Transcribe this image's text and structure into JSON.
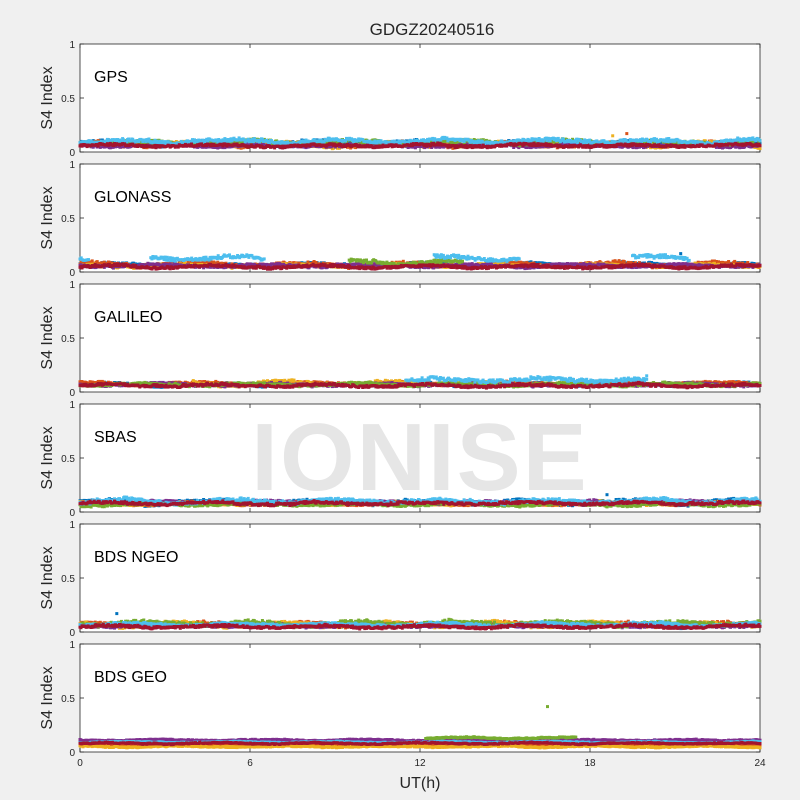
{
  "chart_data": {
    "type": "scatter",
    "title": "GDGZ20240516",
    "xlabel": "UT(h)",
    "ylabel": "S4 Index",
    "xlim": [
      0,
      24
    ],
    "ylim": [
      0,
      1
    ],
    "xticks": [
      "0",
      "6",
      "12",
      "18",
      "24"
    ],
    "yticks": [
      "0",
      "0.5",
      "1"
    ],
    "watermark": "IONISE",
    "colors": [
      "#0072BD",
      "#D95319",
      "#EDB120",
      "#7E2F8E",
      "#77AC30",
      "#4DBEEE",
      "#A2142F"
    ],
    "panels": [
      {
        "label": "GPS",
        "series": [
          {
            "base": 0.08,
            "amp": 0.03,
            "seg": [
              [
                0,
                24
              ]
            ]
          },
          {
            "base": 0.07,
            "amp": 0.03,
            "seg": [
              [
                0,
                24
              ]
            ]
          },
          {
            "base": 0.07,
            "amp": 0.03,
            "seg": [
              [
                0,
                24
              ]
            ]
          },
          {
            "base": 0.06,
            "amp": 0.02,
            "seg": [
              [
                0,
                24
              ]
            ]
          },
          {
            "base": 0.09,
            "amp": 0.03,
            "seg": [
              [
                0,
                24
              ]
            ]
          },
          {
            "base": 0.1,
            "amp": 0.03,
            "seg": [
              [
                0,
                24
              ]
            ]
          },
          {
            "base": 0.06,
            "amp": 0.02,
            "seg": [
              [
                0,
                24
              ]
            ]
          }
        ],
        "extra": [
          {
            "x": 19.3,
            "y": 0.17,
            "c": 1
          },
          {
            "x": 18.8,
            "y": 0.15,
            "c": 2
          }
        ]
      },
      {
        "label": "GLONASS",
        "series": [
          {
            "base": 0.07,
            "amp": 0.02,
            "seg": [
              [
                0,
                24
              ]
            ]
          },
          {
            "base": 0.07,
            "amp": 0.03,
            "seg": [
              [
                0,
                24
              ]
            ]
          },
          {
            "base": 0.06,
            "amp": 0.02,
            "seg": [
              [
                0,
                24
              ]
            ]
          },
          {
            "base": 0.06,
            "amp": 0.02,
            "seg": [
              [
                0,
                24
              ]
            ]
          },
          {
            "base": 0.09,
            "amp": 0.03,
            "seg": [
              [
                9.5,
                13.5
              ]
            ]
          },
          {
            "base": 0.13,
            "amp": 0.03,
            "seg": [
              [
                0,
                0.3
              ],
              [
                2.5,
                6.5
              ],
              [
                12.5,
                15.5
              ],
              [
                19.5,
                21.5
              ]
            ]
          },
          {
            "base": 0.05,
            "amp": 0.02,
            "seg": [
              [
                0,
                24
              ]
            ]
          }
        ],
        "extra": [
          {
            "x": 21.2,
            "y": 0.17,
            "c": 0
          }
        ]
      },
      {
        "label": "GALILEO",
        "series": [
          {
            "base": 0.07,
            "amp": 0.02,
            "seg": [
              [
                0,
                24
              ]
            ]
          },
          {
            "base": 0.08,
            "amp": 0.02,
            "seg": [
              [
                0,
                24
              ]
            ]
          },
          {
            "base": 0.08,
            "amp": 0.03,
            "seg": [
              [
                4,
                12
              ],
              [
                13.5,
                16
              ]
            ]
          },
          {
            "base": 0.07,
            "amp": 0.02,
            "seg": [
              [
                0,
                24
              ]
            ]
          },
          {
            "base": 0.07,
            "amp": 0.02,
            "seg": [
              [
                0,
                24
              ]
            ]
          },
          {
            "base": 0.11,
            "amp": 0.03,
            "seg": [
              [
                11.5,
                20
              ]
            ]
          },
          {
            "base": 0.06,
            "amp": 0.02,
            "seg": [
              [
                0,
                24
              ]
            ]
          }
        ],
        "extra": [
          {
            "x": 20.0,
            "y": 0.15,
            "c": 5
          }
        ]
      },
      {
        "label": "SBAS",
        "series": [
          {
            "base": 0.09,
            "amp": 0.03,
            "seg": [
              [
                0,
                24
              ]
            ]
          },
          {
            "base": 0.08,
            "amp": 0.02,
            "seg": [
              [
                0,
                24
              ]
            ]
          },
          {
            "base": 0.08,
            "amp": 0.02,
            "seg": [
              [
                0,
                24
              ]
            ]
          },
          {
            "base": 0.09,
            "amp": 0.02,
            "seg": [
              [
                0,
                24
              ]
            ]
          },
          {
            "base": 0.07,
            "amp": 0.02,
            "seg": [
              [
                0,
                24
              ]
            ]
          },
          {
            "base": 0.1,
            "amp": 0.03,
            "seg": [
              [
                0,
                24
              ]
            ]
          },
          {
            "base": 0.08,
            "amp": 0.02,
            "seg": [
              [
                0,
                24
              ]
            ]
          }
        ],
        "extra": [
          {
            "x": 18.6,
            "y": 0.16,
            "c": 0
          }
        ]
      },
      {
        "label": "BDS NGEO",
        "series": [
          {
            "base": 0.06,
            "amp": 0.02,
            "seg": [
              [
                0,
                24
              ]
            ]
          },
          {
            "base": 0.07,
            "amp": 0.03,
            "seg": [
              [
                0,
                24
              ]
            ]
          },
          {
            "base": 0.07,
            "amp": 0.03,
            "seg": [
              [
                0,
                24
              ]
            ]
          },
          {
            "base": 0.06,
            "amp": 0.02,
            "seg": [
              [
                0,
                24
              ]
            ]
          },
          {
            "base": 0.08,
            "amp": 0.03,
            "seg": [
              [
                0,
                24
              ]
            ]
          },
          {
            "base": 0.07,
            "amp": 0.02,
            "seg": [
              [
                0,
                24
              ]
            ]
          },
          {
            "base": 0.05,
            "amp": 0.02,
            "seg": [
              [
                0,
                24
              ]
            ]
          }
        ],
        "extra": [
          {
            "x": 1.3,
            "y": 0.17,
            "c": 0
          }
        ]
      },
      {
        "label": "BDS GEO",
        "series": [
          {
            "base": 0.09,
            "amp": 0.01,
            "seg": [
              [
                0,
                24
              ]
            ]
          },
          {
            "base": 0.07,
            "amp": 0.01,
            "seg": [
              [
                0,
                24
              ]
            ]
          },
          {
            "base": 0.05,
            "amp": 0.01,
            "seg": [
              [
                0,
                24
              ]
            ]
          },
          {
            "base": 0.11,
            "amp": 0.01,
            "seg": [
              [
                0,
                24
              ]
            ]
          },
          {
            "base": 0.13,
            "amp": 0.01,
            "seg": [
              [
                12.2,
                17.5
              ]
            ]
          },
          {
            "base": 0.09,
            "amp": 0.01,
            "seg": [
              [
                0,
                24
              ]
            ]
          },
          {
            "base": 0.08,
            "amp": 0.01,
            "seg": [
              [
                0,
                24
              ]
            ]
          }
        ],
        "extra": [
          {
            "x": 16.5,
            "y": 0.42,
            "c": 4
          }
        ]
      }
    ]
  }
}
